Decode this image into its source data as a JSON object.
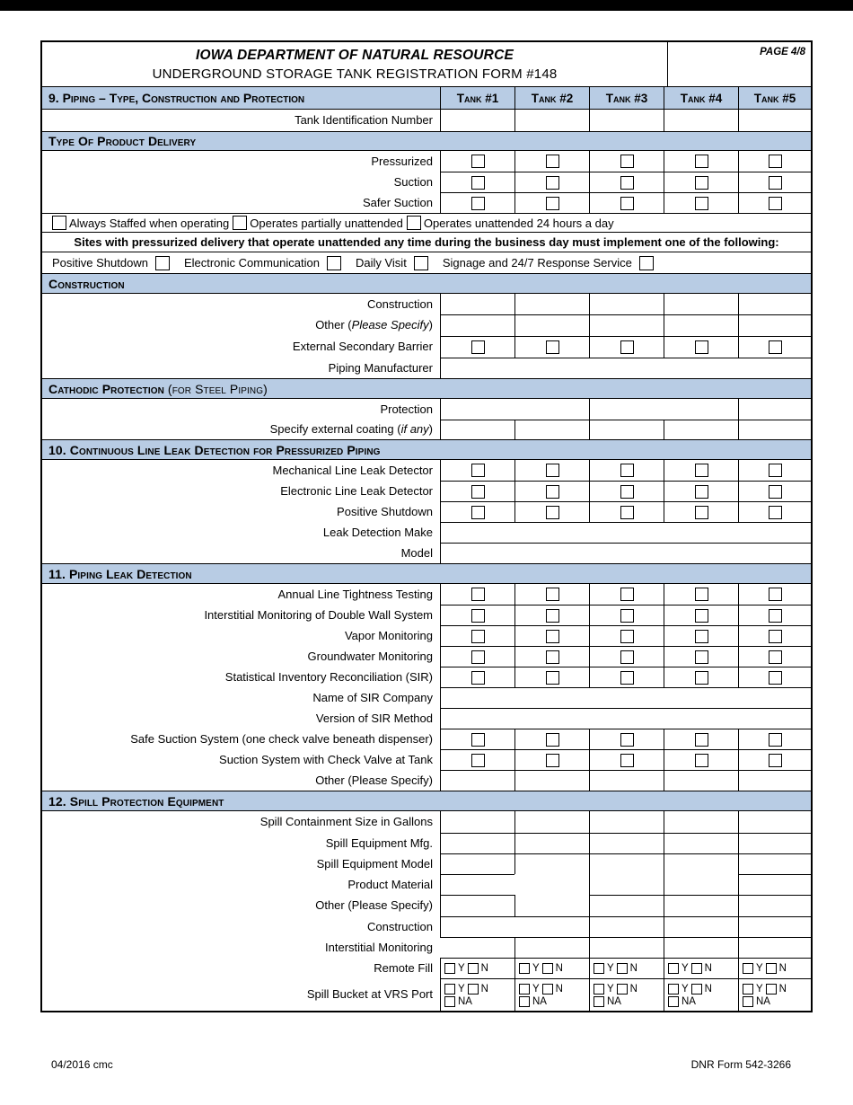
{
  "header": {
    "title_line1": "IOWA DEPARTMENT OF NATURAL RESOURCE",
    "title_line2": "UNDERGROUND STORAGE TANK REGISTRATION FORM #148",
    "page": "PAGE 4/8"
  },
  "colors": {
    "section_header_blue": "#b8cce4"
  },
  "s9": {
    "title": "9. Piping – Type, Construction and Protection",
    "tanks": [
      "Tank #1",
      "Tank #2",
      "Tank #3",
      "Tank #4",
      "Tank #5"
    ],
    "tank_id": "Tank Identification Number",
    "delivery_title": "Type Of Product Delivery",
    "pressurized": "Pressurized",
    "suction": "Suction",
    "safer_suction": "Safer Suction",
    "staffed1": "Always Staffed when operating",
    "staffed2": "Operates partially unattended",
    "staffed3": "Operates unattended 24 hours a day",
    "sites_note": "Sites with pressurized delivery that operate unattended any time during the business day must implement one of the following:",
    "opt1": "Positive Shutdown",
    "opt2": "Electronic Communication",
    "opt3": "Daily Visit",
    "opt4": "Signage and 24/7 Response Service",
    "construction_title": "Construction",
    "construction": "Construction",
    "other_prefix": "Other (",
    "other_italic": "Please Specify",
    "other_suffix": ")",
    "ext_barrier": "External Secondary Barrier",
    "piping_mfr": "Piping Manufacturer",
    "cathodic_title_main": "Cathodic Protection",
    "cathodic_title_paren": " (for Steel Piping)",
    "protection": "Protection",
    "coating_prefix": "Specify external coating (",
    "coating_italic": "if any",
    "coating_suffix": ")"
  },
  "s10": {
    "title": "10. Continuous Line Leak Detection for Pressurized Piping",
    "mech": "Mechanical Line Leak Detector",
    "elec": "Electronic Line Leak Detector",
    "pos": "Positive Shutdown",
    "make": "Leak Detection Make",
    "model": "Model"
  },
  "s11": {
    "title": "11. Piping Leak Detection",
    "r1": "Annual Line Tightness Testing",
    "r2": "Interstitial Monitoring of Double Wall System",
    "r3": "Vapor Monitoring",
    "r4": "Groundwater Monitoring",
    "r5": "Statistical Inventory Reconciliation (SIR)",
    "r6": "Name of SIR Company",
    "r7": "Version of SIR Method",
    "r8": "Safe Suction System (one check valve beneath dispenser)",
    "r9": "Suction System with Check Valve at Tank",
    "r10": "Other (Please Specify)"
  },
  "s12": {
    "title": "12. Spill Protection Equipment",
    "r1": "Spill Containment Size in Gallons",
    "r2": "Spill Equipment Mfg.",
    "r3": "Spill Equipment Model",
    "r4": "Product Material",
    "r5": "Other (Please Specify)",
    "r6": "Construction",
    "r7": "Interstitial Monitoring",
    "r8": "Remote Fill",
    "r9": "Spill Bucket at VRS Port",
    "y": "Y",
    "n": "N",
    "na": "NA"
  },
  "footer": {
    "left": "04/2016 cmc",
    "right": "DNR Form 542-3266"
  }
}
